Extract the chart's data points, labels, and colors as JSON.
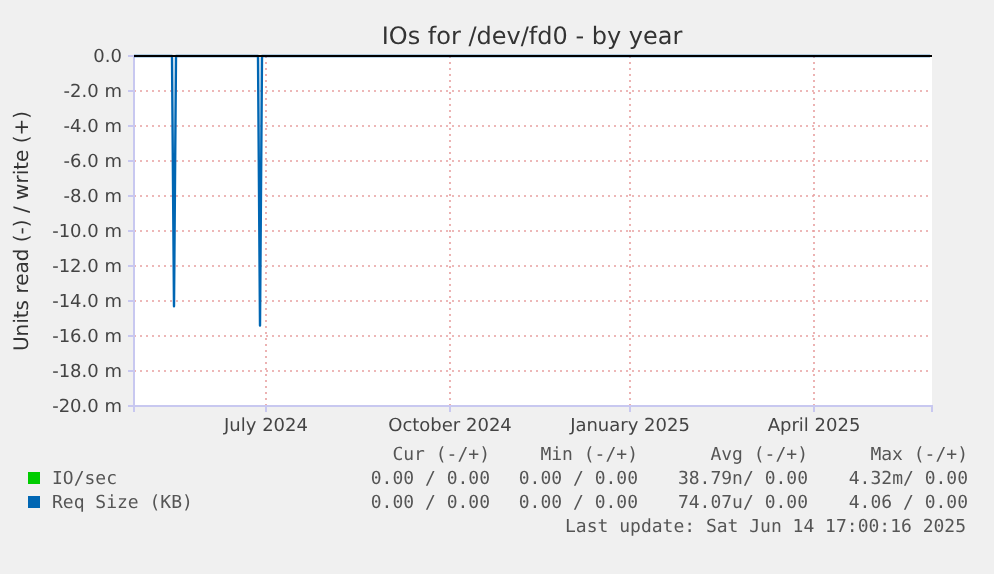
{
  "chart_data": {
    "type": "line",
    "title": "IOs for /dev/fd0 - by year",
    "ylabel": "Units read (-) / write (+)",
    "xlim": [
      "2024-05-12",
      "2025-06-15"
    ],
    "xticks": [
      {
        "value": "2024-07-17",
        "label": "July 2024"
      },
      {
        "value": "2024-10-17",
        "label": "October 2024"
      },
      {
        "value": "2025-01-15",
        "label": "January 2025"
      },
      {
        "value": "2025-04-17",
        "label": "April 2025"
      }
    ],
    "ylim": [
      -20,
      0
    ],
    "yticks": [
      {
        "value": -20,
        "label": "-20.0 m"
      },
      {
        "value": -18,
        "label": "-18.0 m"
      },
      {
        "value": -16,
        "label": "-16.0 m"
      },
      {
        "value": -14,
        "label": "-14.0 m"
      },
      {
        "value": -12,
        "label": "-12.0 m"
      },
      {
        "value": -10,
        "label": "-10.0 m"
      },
      {
        "value": -8,
        "label": "-8.0 m"
      },
      {
        "value": -6,
        "label": "-6.0 m"
      },
      {
        "value": -4,
        "label": "-4.0 m"
      },
      {
        "value": -2,
        "label": "-2.0 m"
      },
      {
        "value": 0,
        "label": "0.0"
      }
    ],
    "grid": true,
    "legend": "bottom",
    "series": [
      {
        "name": "IO/sec",
        "color": "#00cc00"
      },
      {
        "name": "Req Size (KB)",
        "color": "#0066b3",
        "x": [
          "2024-05-12",
          "2024-05-31",
          "2024-06-01",
          "2024-06-02",
          "2024-07-13",
          "2024-07-14",
          "2024-07-15",
          "2025-06-14"
        ],
        "values": [
          0,
          0,
          -14.3,
          0,
          0,
          -15.4,
          0,
          0
        ]
      }
    ],
    "annotations": [
      "Cur (-/+)",
      "Min (-/+)",
      "Avg (-/+)",
      "Max (-/+)",
      "0.00 / 0.00",
      "0.00 / 0.00",
      "38.79n/ 0.00",
      "4.32m/ 0.00",
      "0.00 / 0.00",
      "0.00 / 0.00",
      "74.07u/ 0.00",
      "4.06 / 0.00",
      "Last update: Sat Jun 14 17:00:16 2025"
    ]
  }
}
